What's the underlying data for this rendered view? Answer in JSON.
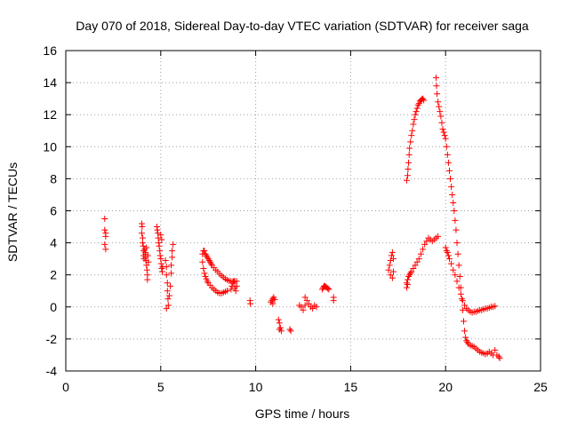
{
  "chart_data": {
    "type": "scatter",
    "title": "Day 070 of 2018, Sidereal Day-to-day VTEC variation (SDTVAR) for receiver saga",
    "xlabel": "GPS time / hours",
    "ylabel": "SDTVAR / TECUs",
    "xlim": [
      0,
      25
    ],
    "ylim": [
      -4,
      16
    ],
    "xticks": [
      0,
      5,
      10,
      15,
      20,
      25
    ],
    "yticks": [
      -4,
      -2,
      0,
      2,
      4,
      6,
      8,
      10,
      12,
      14,
      16
    ],
    "grid": true,
    "marker": "+",
    "color": "#ff0000",
    "series": [
      {
        "name": "SDTVAR",
        "points": [
          [
            2.05,
            5.5
          ],
          [
            2.05,
            4.8
          ],
          [
            2.1,
            4.6
          ],
          [
            2.1,
            4.4
          ],
          [
            2.05,
            3.9
          ],
          [
            2.1,
            3.6
          ],
          [
            4.0,
            5.2
          ],
          [
            4.02,
            5.0
          ],
          [
            4.0,
            4.6
          ],
          [
            4.05,
            4.3
          ],
          [
            4.05,
            4.0
          ],
          [
            4.08,
            3.8
          ],
          [
            4.1,
            3.5
          ],
          [
            4.1,
            3.2
          ],
          [
            4.12,
            3.0
          ],
          [
            4.15,
            3.6
          ],
          [
            4.18,
            3.4
          ],
          [
            4.2,
            3.3
          ],
          [
            4.2,
            3.1
          ],
          [
            4.22,
            2.9
          ],
          [
            4.25,
            3.7
          ],
          [
            4.25,
            2.6
          ],
          [
            4.28,
            2.3
          ],
          [
            4.3,
            2.0
          ],
          [
            4.3,
            1.7
          ],
          [
            4.32,
            3.2
          ],
          [
            4.35,
            2.8
          ],
          [
            4.8,
            5.0
          ],
          [
            4.82,
            4.8
          ],
          [
            4.85,
            4.6
          ],
          [
            4.87,
            4.3
          ],
          [
            4.9,
            4.0
          ],
          [
            4.92,
            3.8
          ],
          [
            4.95,
            3.5
          ],
          [
            4.97,
            3.2
          ],
          [
            5.0,
            3.0
          ],
          [
            5.02,
            2.7
          ],
          [
            5.05,
            2.4
          ],
          [
            5.08,
            2.2
          ],
          [
            5.1,
            2.5
          ],
          [
            5.0,
            4.5
          ],
          [
            5.05,
            4.2
          ],
          [
            5.25,
            2.9
          ],
          [
            5.3,
            2.5
          ],
          [
            5.3,
            2.0
          ],
          [
            5.35,
            1.5
          ],
          [
            5.35,
            1.0
          ],
          [
            5.38,
            0.5
          ],
          [
            5.4,
            0.1
          ],
          [
            5.3,
            -0.1
          ],
          [
            5.45,
            0.7
          ],
          [
            5.5,
            1.3
          ],
          [
            5.55,
            2.1
          ],
          [
            5.55,
            2.6
          ],
          [
            5.6,
            3.1
          ],
          [
            5.6,
            3.5
          ],
          [
            5.65,
            3.9
          ],
          [
            7.2,
            3.3
          ],
          [
            7.25,
            3.5
          ],
          [
            7.3,
            3.5
          ],
          [
            7.35,
            3.3
          ],
          [
            7.4,
            3.2
          ],
          [
            7.45,
            3.1
          ],
          [
            7.5,
            3.0
          ],
          [
            7.55,
            2.9
          ],
          [
            7.6,
            2.8
          ],
          [
            7.65,
            2.7
          ],
          [
            7.7,
            2.6
          ],
          [
            7.8,
            2.45
          ],
          [
            7.9,
            2.3
          ],
          [
            8.0,
            2.2
          ],
          [
            8.1,
            2.05
          ],
          [
            8.2,
            1.95
          ],
          [
            8.3,
            1.85
          ],
          [
            8.4,
            1.75
          ],
          [
            8.5,
            1.68
          ],
          [
            8.6,
            1.62
          ],
          [
            8.7,
            1.6
          ],
          [
            8.8,
            1.58
          ],
          [
            8.9,
            1.6
          ],
          [
            9.0,
            1.6
          ],
          [
            7.2,
            2.8
          ],
          [
            7.25,
            2.4
          ],
          [
            7.3,
            2.1
          ],
          [
            7.35,
            1.9
          ],
          [
            7.4,
            1.75
          ],
          [
            7.45,
            1.6
          ],
          [
            7.5,
            1.5
          ],
          [
            7.6,
            1.35
          ],
          [
            7.7,
            1.2
          ],
          [
            7.8,
            1.1
          ],
          [
            7.9,
            1.0
          ],
          [
            8.0,
            0.9
          ],
          [
            8.1,
            0.85
          ],
          [
            8.2,
            0.85
          ],
          [
            8.3,
            0.9
          ],
          [
            8.4,
            0.95
          ],
          [
            8.5,
            1.0
          ],
          [
            8.7,
            1.1
          ],
          [
            8.75,
            1.3
          ],
          [
            8.8,
            1.5
          ],
          [
            8.85,
            1.6
          ],
          [
            8.9,
            1.2
          ],
          [
            8.95,
            1.0
          ],
          [
            9.0,
            1.3
          ],
          [
            9.7,
            0.4
          ],
          [
            9.72,
            0.2
          ],
          [
            10.8,
            0.3
          ],
          [
            10.85,
            0.4
          ],
          [
            10.9,
            0.5
          ],
          [
            10.95,
            0.6
          ],
          [
            11.0,
            0.45
          ],
          [
            10.9,
            0.2
          ],
          [
            11.2,
            -0.8
          ],
          [
            11.25,
            -1.0
          ],
          [
            11.3,
            -1.3
          ],
          [
            11.35,
            -1.5
          ],
          [
            11.25,
            -1.4
          ],
          [
            11.8,
            -1.4
          ],
          [
            11.85,
            -1.5
          ],
          [
            12.3,
            0.1
          ],
          [
            12.4,
            0.0
          ],
          [
            12.5,
            -0.2
          ],
          [
            12.6,
            0.1
          ],
          [
            12.7,
            0.4
          ],
          [
            12.8,
            0.2
          ],
          [
            12.9,
            0.0
          ],
          [
            13.0,
            -0.1
          ],
          [
            13.1,
            0.1
          ],
          [
            13.2,
            0.0
          ],
          [
            12.6,
            0.6
          ],
          [
            13.5,
            1.1
          ],
          [
            13.55,
            1.2
          ],
          [
            13.6,
            1.3
          ],
          [
            13.65,
            1.3
          ],
          [
            13.7,
            1.25
          ],
          [
            13.75,
            1.2
          ],
          [
            13.8,
            1.15
          ],
          [
            13.85,
            1.1
          ],
          [
            14.1,
            0.6
          ],
          [
            14.1,
            0.4
          ],
          [
            17.0,
            2.3
          ],
          [
            17.05,
            2.6
          ],
          [
            17.1,
            2.9
          ],
          [
            17.15,
            3.2
          ],
          [
            17.2,
            3.4
          ],
          [
            17.25,
            3.0
          ],
          [
            17.1,
            2.0
          ],
          [
            17.2,
            1.8
          ],
          [
            17.25,
            2.2
          ],
          [
            17.95,
            7.9
          ],
          [
            18.0,
            8.2
          ],
          [
            18.02,
            8.6
          ],
          [
            18.05,
            9.0
          ],
          [
            18.08,
            9.5
          ],
          [
            18.1,
            9.9
          ],
          [
            18.15,
            10.3
          ],
          [
            18.2,
            10.7
          ],
          [
            18.25,
            11.0
          ],
          [
            18.3,
            11.4
          ],
          [
            18.35,
            11.7
          ],
          [
            18.4,
            12.0
          ],
          [
            18.45,
            12.2
          ],
          [
            18.5,
            12.4
          ],
          [
            18.55,
            12.6
          ],
          [
            18.6,
            12.7
          ],
          [
            18.65,
            12.85
          ],
          [
            18.7,
            12.9
          ],
          [
            18.75,
            12.95
          ],
          [
            18.8,
            13.0
          ],
          [
            18.85,
            12.9
          ],
          [
            17.95,
            1.5
          ],
          [
            18.0,
            1.7
          ],
          [
            18.05,
            1.9
          ],
          [
            18.1,
            2.0
          ],
          [
            18.15,
            2.1
          ],
          [
            18.2,
            2.2
          ],
          [
            18.3,
            2.4
          ],
          [
            18.4,
            2.6
          ],
          [
            18.5,
            2.8
          ],
          [
            18.6,
            3.0
          ],
          [
            18.7,
            3.3
          ],
          [
            18.8,
            3.6
          ],
          [
            18.9,
            3.9
          ],
          [
            19.0,
            4.1
          ],
          [
            19.1,
            4.3
          ],
          [
            19.2,
            4.2
          ],
          [
            19.3,
            4.1
          ],
          [
            19.4,
            4.2
          ],
          [
            19.5,
            4.3
          ],
          [
            19.6,
            4.4
          ],
          [
            17.95,
            1.2
          ],
          [
            18.0,
            1.4
          ],
          [
            19.5,
            14.3
          ],
          [
            19.52,
            13.8
          ],
          [
            19.55,
            13.3
          ],
          [
            19.6,
            12.8
          ],
          [
            19.65,
            12.5
          ],
          [
            19.7,
            12.2
          ],
          [
            19.75,
            11.9
          ],
          [
            19.8,
            11.5
          ],
          [
            19.85,
            11.1
          ],
          [
            19.9,
            10.9
          ],
          [
            19.95,
            10.7
          ],
          [
            20.0,
            10.5
          ],
          [
            20.05,
            10.0
          ],
          [
            20.1,
            9.5
          ],
          [
            20.15,
            9.0
          ],
          [
            20.2,
            8.5
          ],
          [
            20.25,
            8.0
          ],
          [
            20.3,
            7.5
          ],
          [
            20.35,
            7.0
          ],
          [
            20.4,
            6.5
          ],
          [
            20.45,
            6.0
          ],
          [
            20.5,
            5.4
          ],
          [
            20.55,
            4.8
          ],
          [
            20.6,
            4.0
          ],
          [
            20.65,
            3.3
          ],
          [
            20.7,
            2.6
          ],
          [
            20.75,
            1.9
          ],
          [
            20.8,
            1.2
          ],
          [
            20.85,
            0.5
          ],
          [
            20.9,
            -0.2
          ],
          [
            20.95,
            -0.9
          ],
          [
            21.0,
            -1.5
          ],
          [
            21.05,
            -1.9
          ],
          [
            21.1,
            -2.1
          ],
          [
            21.15,
            -2.2
          ],
          [
            21.2,
            -2.3
          ],
          [
            21.3,
            -2.4
          ],
          [
            21.4,
            -2.45
          ],
          [
            21.5,
            -2.5
          ],
          [
            21.6,
            -2.6
          ],
          [
            21.7,
            -2.7
          ],
          [
            21.8,
            -2.8
          ],
          [
            21.9,
            -2.85
          ],
          [
            22.0,
            -2.9
          ],
          [
            22.1,
            -2.95
          ],
          [
            22.2,
            -2.9
          ],
          [
            22.3,
            -2.8
          ],
          [
            22.4,
            -2.9
          ],
          [
            22.5,
            -3.0
          ],
          [
            22.6,
            -2.7
          ],
          [
            22.7,
            -3.0
          ],
          [
            22.8,
            -3.1
          ],
          [
            22.85,
            -3.2
          ],
          [
            20.0,
            3.7
          ],
          [
            20.05,
            3.5
          ],
          [
            20.1,
            3.4
          ],
          [
            20.15,
            3.2
          ],
          [
            20.2,
            3.0
          ],
          [
            20.3,
            2.7
          ],
          [
            20.4,
            2.3
          ],
          [
            20.5,
            2.0
          ],
          [
            20.6,
            1.6
          ],
          [
            20.7,
            1.2
          ],
          [
            20.8,
            0.8
          ],
          [
            20.9,
            0.4
          ],
          [
            21.0,
            0.1
          ],
          [
            21.1,
            -0.1
          ],
          [
            21.2,
            -0.2
          ],
          [
            21.3,
            -0.3
          ],
          [
            21.4,
            -0.35
          ],
          [
            21.5,
            -0.3
          ],
          [
            21.6,
            -0.3
          ],
          [
            21.7,
            -0.25
          ],
          [
            21.8,
            -0.2
          ],
          [
            21.9,
            -0.2
          ],
          [
            22.0,
            -0.15
          ],
          [
            22.1,
            -0.1
          ],
          [
            22.2,
            -0.1
          ],
          [
            22.3,
            -0.05
          ],
          [
            22.4,
            0.0
          ],
          [
            22.5,
            0.0
          ],
          [
            22.6,
            0.05
          ]
        ]
      }
    ]
  }
}
